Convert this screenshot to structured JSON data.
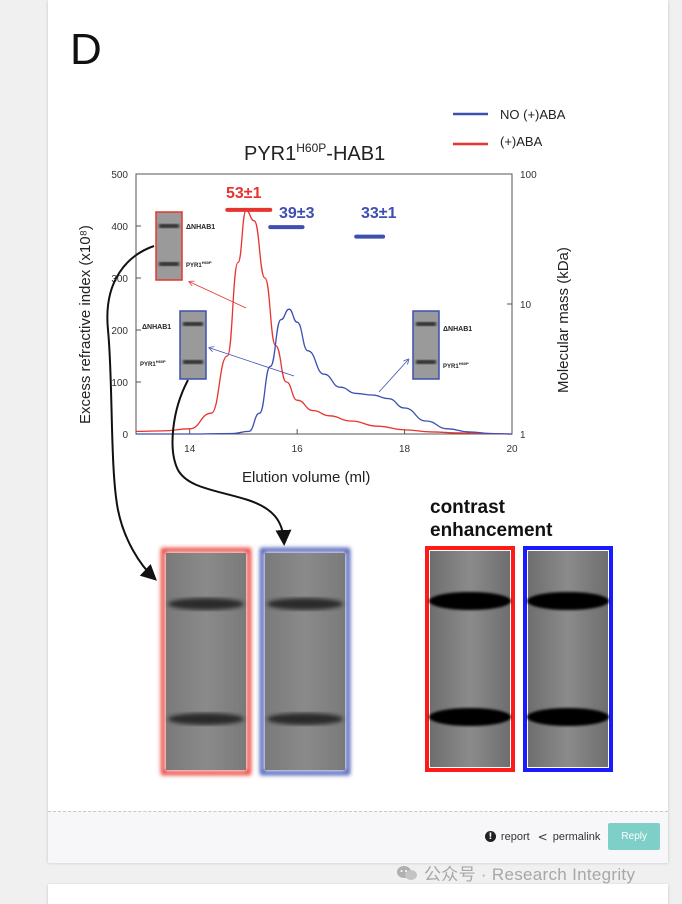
{
  "figure": {
    "panel_letter": "D",
    "chart_title": {
      "main": "PYR1",
      "sup": "H60P",
      "rest": "-HAB1"
    },
    "legend": [
      {
        "label": "NO (+)ABA",
        "color": "#3d4fb0"
      },
      {
        "label": "(+)ABA",
        "color": "#e8342f"
      }
    ],
    "mass_labels": {
      "red": "53±1",
      "blue1": "39±3",
      "blue2": "33±1"
    },
    "gel_labels": {
      "band1": "ΔNHAB1",
      "band2": "PYR1"
    },
    "contrast_label_line1": "contrast",
    "contrast_label_line2": "enhancement",
    "chart_data": {
      "type": "line",
      "title": "PYR1H60P-HAB1",
      "xlabel": "Elution volume (ml)",
      "ylabel": "Excess refractive index (x10⁸)",
      "y2label": "Molecular mass (kDa)",
      "xlim": [
        13,
        20
      ],
      "ylim": [
        0,
        500
      ],
      "y2lim": [
        1,
        100
      ],
      "y2scale": "log",
      "x_ticks": [
        14,
        16,
        18,
        20
      ],
      "y_ticks": [
        0,
        100,
        200,
        300,
        400,
        500
      ],
      "y2_ticks": [
        1,
        10,
        100
      ],
      "series": [
        {
          "name": "(+)ABA",
          "color": "#e8342f",
          "x": [
            13.0,
            13.5,
            14.0,
            14.4,
            14.7,
            14.9,
            15.05,
            15.2,
            15.4,
            15.6,
            15.8,
            16.0,
            16.3,
            16.6,
            17.0,
            17.5,
            18.0,
            18.5,
            19.0,
            19.5,
            20.0
          ],
          "y": [
            5,
            6,
            10,
            40,
            150,
            330,
            430,
            410,
            300,
            170,
            100,
            65,
            45,
            35,
            25,
            15,
            8,
            4,
            2,
            1,
            0
          ]
        },
        {
          "name": "NO (+)ABA",
          "color": "#3d4fb0",
          "x": [
            13.0,
            14.0,
            14.8,
            15.1,
            15.3,
            15.5,
            15.7,
            15.85,
            16.0,
            16.2,
            16.5,
            16.8,
            17.1,
            17.4,
            17.7,
            18.0,
            18.4,
            18.8,
            19.2,
            19.6,
            20.0
          ],
          "y": [
            0,
            0,
            1,
            5,
            40,
            130,
            220,
            240,
            215,
            160,
            115,
            90,
            78,
            75,
            68,
            50,
            25,
            10,
            4,
            1,
            0
          ]
        }
      ],
      "mass_points": [
        {
          "x_range": [
            14.7,
            15.5
          ],
          "mass_kDa": 53,
          "color": "#e8342f"
        },
        {
          "x_range": [
            15.5,
            16.1
          ],
          "mass_kDa": 39,
          "color": "#3d4fb0"
        },
        {
          "x_range": [
            17.1,
            17.6
          ],
          "mass_kDa": 33,
          "color": "#3d4fb0"
        }
      ]
    }
  },
  "footer": {
    "report_label": "report",
    "permalink_label": "permalink",
    "reply_label": "Reply"
  },
  "watermark": {
    "text": "公众号 · Research Integrity"
  }
}
